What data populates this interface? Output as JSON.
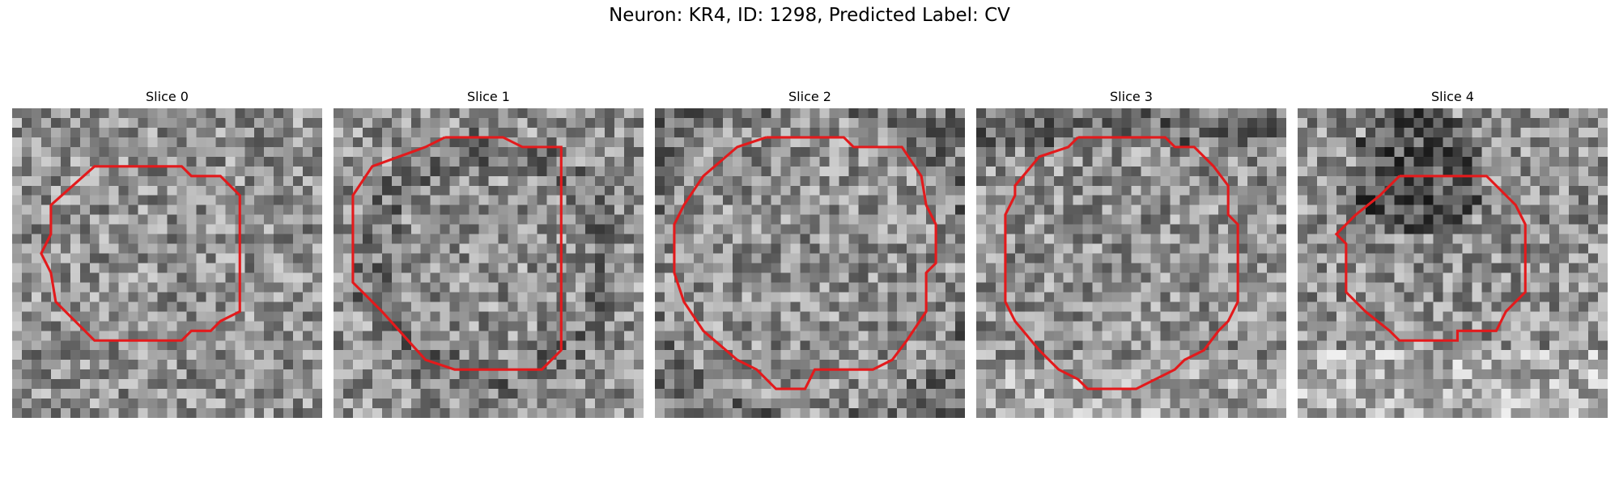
{
  "figure": {
    "title": "Neuron: KR4, ID: 1298, Predicted Label: CV"
  },
  "panels": [
    {
      "title": "Slice 0",
      "seed": 11,
      "contour_color": "#e31a1c",
      "dark_region": "none"
    },
    {
      "title": "Slice 1",
      "seed": 23,
      "contour_color": "#e31a1c",
      "dark_region": "ring"
    },
    {
      "title": "Slice 2",
      "seed": 37,
      "contour_color": "#e31a1c",
      "dark_region": "corners"
    },
    {
      "title": "Slice 3",
      "seed": 51,
      "contour_color": "#e31a1c",
      "dark_region": "top"
    },
    {
      "title": "Slice 4",
      "seed": 67,
      "contour_color": "#e31a1c",
      "dark_region": "top-blob"
    }
  ]
}
